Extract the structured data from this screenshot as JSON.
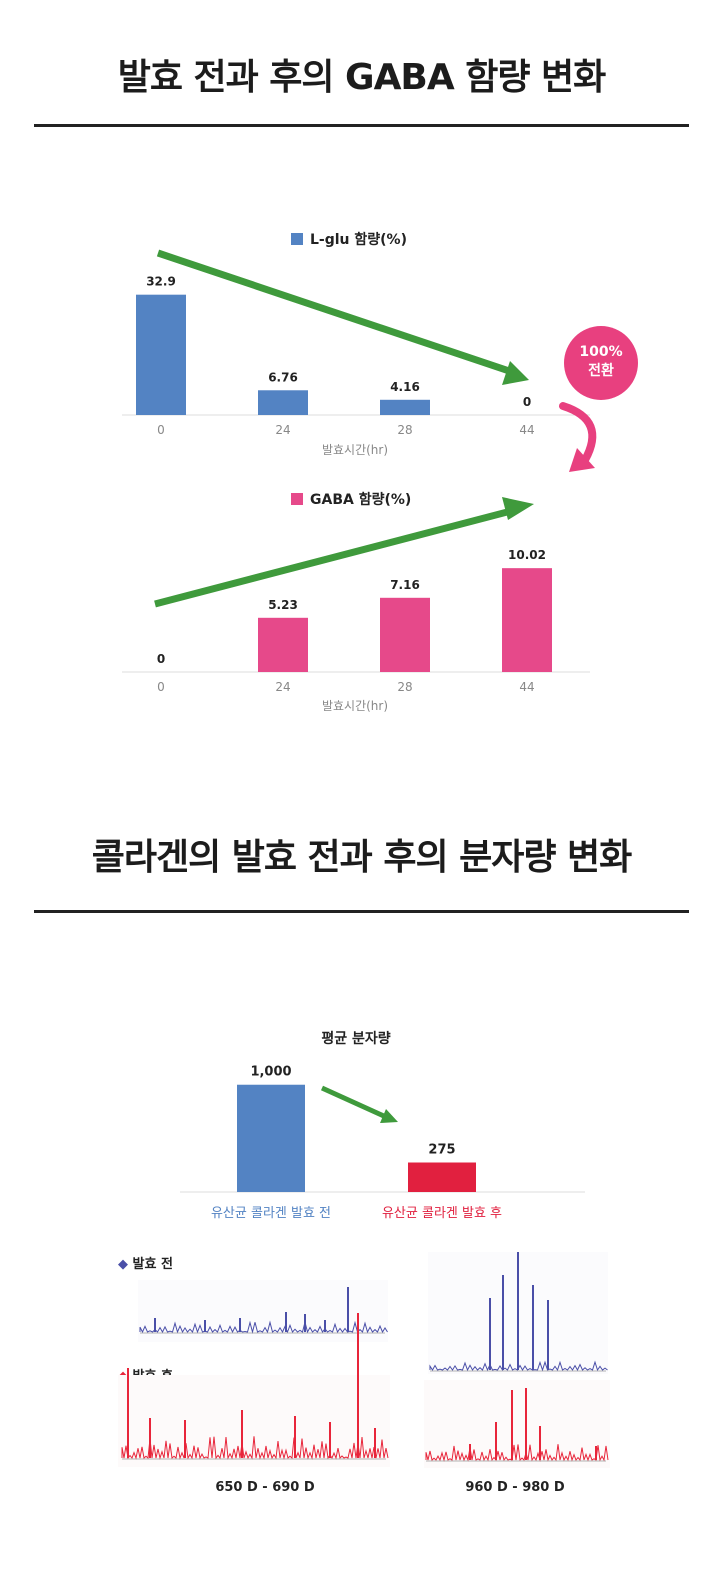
{
  "section1": {
    "title": "발효 전과 후의 GABA 함량 변화"
  },
  "section2": {
    "title": "콜라겐의 발효 전과 후의 분자량 변화"
  },
  "conversion_badge": {
    "line1": "100%",
    "line2": "전환"
  },
  "colors": {
    "blue": "#5383c3",
    "pink": "#e6498a",
    "red": "#e1203f",
    "green": "#3f9a3c",
    "arrow_pink": "#e8407f",
    "spectrum_blue": "#4a4fa8",
    "spectrum_red": "#e8253a"
  },
  "chart_data": [
    {
      "type": "bar",
      "legend": "L-glu 함량(%)",
      "categories": [
        "0",
        "24",
        "28",
        "44"
      ],
      "values": [
        32.9,
        6.76,
        4.16,
        0
      ],
      "value_labels": [
        "32.9",
        "6.76",
        "4.16",
        "0"
      ],
      "xlabel": "발효시간(hr)",
      "ylim": [
        0,
        35
      ],
      "color": "#5383c3",
      "trend": "decreasing"
    },
    {
      "type": "bar",
      "legend": "GABA 함량(%)",
      "categories": [
        "0",
        "24",
        "28",
        "44"
      ],
      "values": [
        0,
        5.23,
        7.16,
        10.02
      ],
      "value_labels": [
        "0",
        "5.23",
        "7.16",
        "10.02"
      ],
      "xlabel": "발효시간(hr)",
      "ylim": [
        0,
        11
      ],
      "color": "#e6498a",
      "trend": "increasing"
    },
    {
      "type": "bar",
      "title": "평균 분자량",
      "categories": [
        "유산균 콜라겐 발효 전",
        "유산균 콜라겐 발효 후"
      ],
      "values": [
        1000,
        275
      ],
      "value_labels": [
        "1,000",
        "275"
      ],
      "ylim": [
        0,
        1100
      ],
      "colors": [
        "#5383c3",
        "#e1203f"
      ]
    }
  ],
  "spectra": {
    "before_label": "발효 전",
    "after_label": "발효 후",
    "ranges": [
      "650 D - 690 D",
      "960 D - 980 D"
    ]
  }
}
